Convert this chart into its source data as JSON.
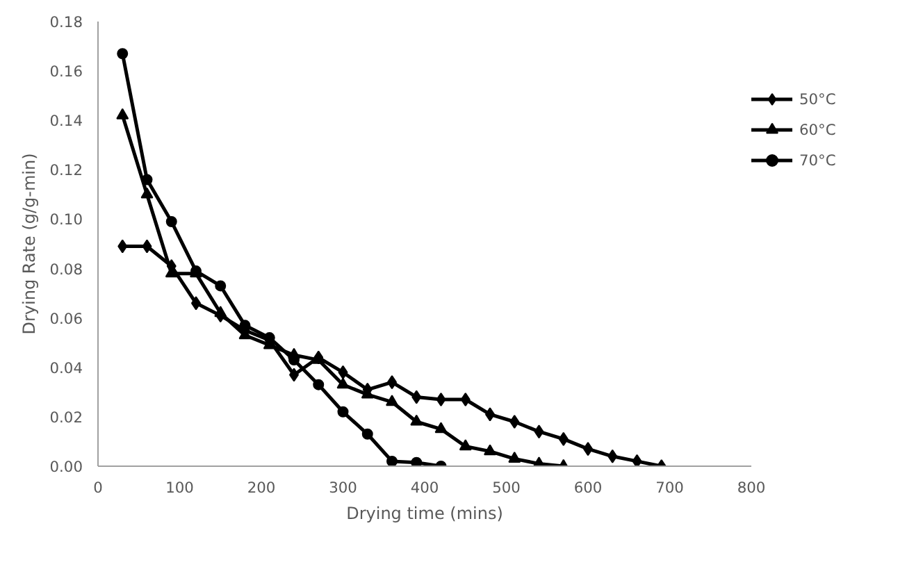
{
  "chart_data": {
    "type": "line",
    "xlabel": "Drying time (mins)",
    "ylabel": "Drying Rate (g/g-min)",
    "xlim": [
      0,
      800
    ],
    "xticks": [
      0,
      100,
      200,
      300,
      400,
      500,
      600,
      700,
      800
    ],
    "ylim": [
      0,
      0.18
    ],
    "yticks": [
      {
        "value": 0,
        "label": "0.00"
      },
      {
        "value": 0.02,
        "label": "0.02"
      },
      {
        "value": 0.04,
        "label": "0.04"
      },
      {
        "value": 0.06,
        "label": "0.06"
      },
      {
        "value": 0.08,
        "label": "0.08"
      },
      {
        "value": 0.1,
        "label": "0.10"
      },
      {
        "value": 0.12,
        "label": "0.12"
      },
      {
        "value": 0.14,
        "label": "0.14"
      },
      {
        "value": 0.16,
        "label": "0.16"
      },
      {
        "value": 0.18,
        "label": "0.18"
      }
    ],
    "grid": false,
    "legend": "right",
    "line_style": "solid",
    "series": [
      {
        "name": "50°C",
        "color": "#000000",
        "marker": "diamond",
        "x": [
          30,
          60,
          90,
          120,
          150,
          180,
          210,
          240,
          270,
          300,
          330,
          360,
          390,
          420,
          450,
          480,
          510,
          540,
          570,
          600,
          630,
          660,
          690
        ],
        "values": [
          0.089,
          0.089,
          0.081,
          0.066,
          0.061,
          0.055,
          0.051,
          0.037,
          0.044,
          0.038,
          0.031,
          0.034,
          0.028,
          0.027,
          0.027,
          0.021,
          0.018,
          0.014,
          0.011,
          0.007,
          0.004,
          0.002,
          0.0
        ]
      },
      {
        "name": "60°C",
        "color": "#000000",
        "marker": "triangle",
        "x": [
          30,
          60,
          90,
          120,
          150,
          180,
          210,
          240,
          270,
          300,
          330,
          360,
          390,
          420,
          450,
          480,
          510,
          540,
          570
        ],
        "values": [
          0.142,
          0.11,
          0.078,
          0.078,
          0.062,
          0.053,
          0.049,
          0.045,
          0.043,
          0.033,
          0.029,
          0.026,
          0.018,
          0.015,
          0.008,
          0.006,
          0.003,
          0.001,
          0.0
        ]
      },
      {
        "name": "70°C",
        "color": "#000000",
        "marker": "circle",
        "x": [
          30,
          60,
          90,
          120,
          150,
          180,
          210,
          240,
          270,
          300,
          330,
          360,
          390,
          420
        ],
        "values": [
          0.167,
          0.116,
          0.099,
          0.079,
          0.073,
          0.057,
          0.052,
          0.043,
          0.033,
          0.022,
          0.013,
          0.002,
          0.0015,
          0.0
        ]
      }
    ]
  }
}
